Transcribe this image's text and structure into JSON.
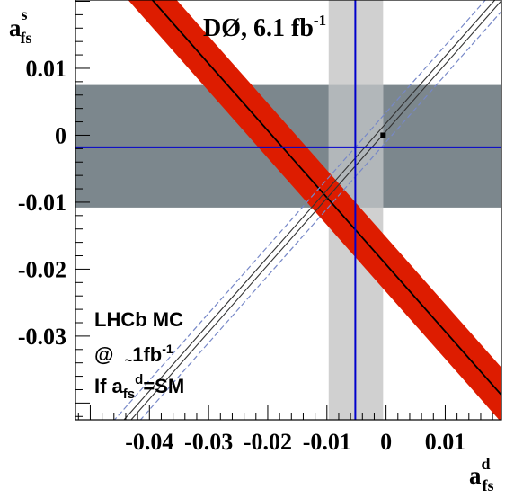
{
  "chart_data": {
    "type": "scatter",
    "title": "DØ, 6.1 fb",
    "title_sup": "-1",
    "xlabel": {
      "main": "a",
      "sup": "d",
      "sub": "fs"
    },
    "ylabel": {
      "main": "a",
      "sup": "s",
      "sub": "fs"
    },
    "xlim": [
      -0.0525,
      0.0195
    ],
    "ylim": [
      -0.0425,
      0.0202
    ],
    "xticks": [
      -0.04,
      -0.03,
      -0.02,
      -0.01,
      0,
      0.01
    ],
    "xtick_labels": [
      "-0.04",
      "-0.03",
      "-0.02",
      "-0.01",
      "0",
      "0.01"
    ],
    "yticks": [
      0.01,
      0,
      -0.01,
      -0.02,
      -0.03
    ],
    "ytick_labels": [
      "0.01",
      "0",
      "-0.01",
      "-0.02",
      "-0.03"
    ],
    "grid": false,
    "colors": {
      "red_band": "#dd1c00",
      "dark_band": "#7c878d",
      "light_band": "#d0d0d0",
      "blue_line": "#0000cc",
      "dashed_line": "#7788c8",
      "central_line": "#000000"
    },
    "horizontal_band": {
      "center": -0.0018,
      "low": -0.0108,
      "high": 0.0075
    },
    "vertical_band": {
      "center": -0.0052,
      "low": -0.0097,
      "high": -0.0005
    },
    "diagonal_band": {
      "slope": -1.0,
      "center_intercept": -0.0193,
      "half_width_intercept": 0.0041
    },
    "lhcb_line": {
      "slope": 1.0,
      "center_intercept": 0.0012,
      "inner_offsets": [
        -0.0006,
        0.0006
      ],
      "dashed_offsets": [
        -0.0022,
        0.0022
      ]
    },
    "sm_point": {
      "x": -0.0005,
      "y": 0.0
    },
    "annotation": {
      "line1": "LHCb MC",
      "line2_at": "@",
      "line2_tilde": "~",
      "line2_val": "1fb",
      "line2_sup": "-1",
      "line3_if": "If a",
      "line3_sub": "fs",
      "line3_sup": "d",
      "line3_eq": "=SM"
    }
  }
}
